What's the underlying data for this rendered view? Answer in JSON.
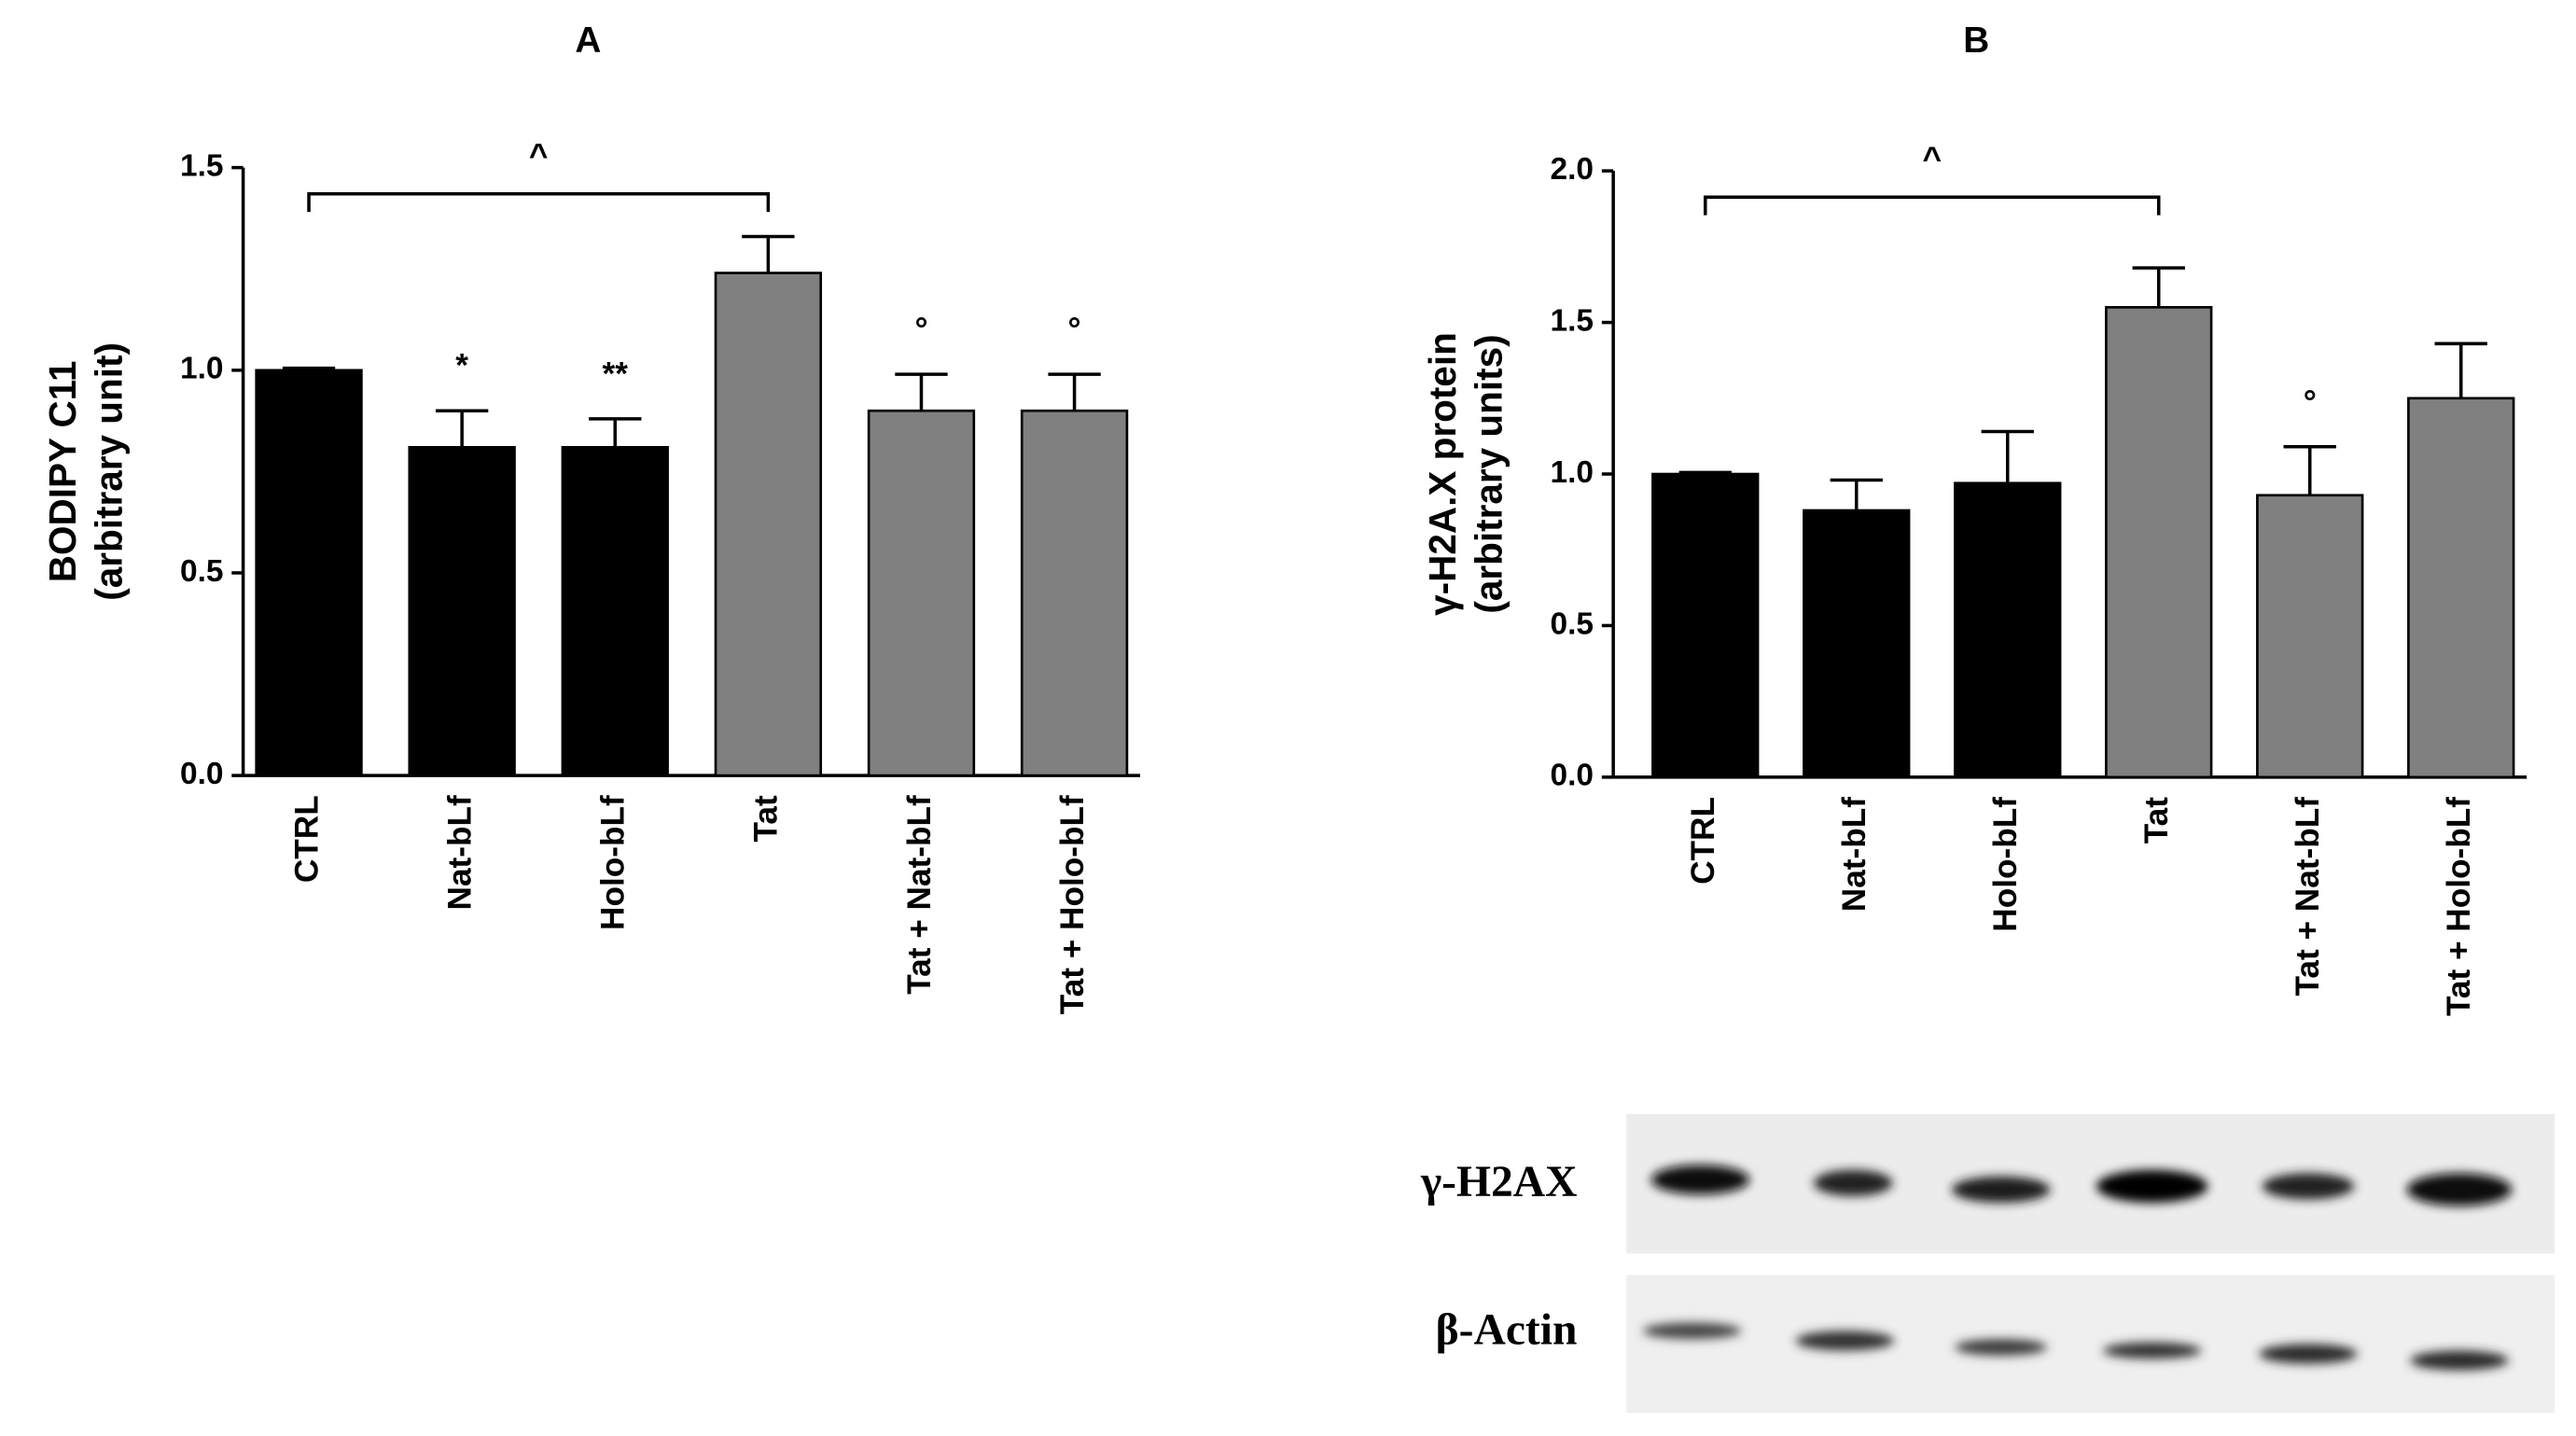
{
  "chart_data": [
    {
      "type": "bar",
      "title": "A",
      "ylabel": [
        "BODIPY C11",
        "(arbitrary unit)"
      ],
      "categories": [
        "CTRL",
        "Nat-bLf",
        "Holo-bLf",
        "Tat",
        "Tat + Nat-bLf",
        "Tat + Holo-bLf"
      ],
      "values": [
        1.0,
        0.81,
        0.81,
        1.24,
        0.9,
        0.9
      ],
      "errors": [
        0.005,
        0.09,
        0.07,
        0.09,
        0.09,
        0.09
      ],
      "colors": [
        "#000000",
        "#000000",
        "#000000",
        "#808080",
        "#808080",
        "#808080"
      ],
      "annotations": [
        null,
        "*",
        "**",
        null,
        "°",
        "°"
      ],
      "comparison": {
        "categories": [
          "CTRL",
          "Tat"
        ],
        "label": "^"
      },
      "ylim": [
        0,
        1.5
      ],
      "yticks": [
        {
          "value": 0,
          "label": "0.0"
        },
        {
          "value": 0.5,
          "label": "0.5"
        },
        {
          "value": 1,
          "label": "1.0"
        },
        {
          "value": 1.5,
          "label": "1.5"
        }
      ]
    },
    {
      "type": "bar",
      "title": "B",
      "ylabel": [
        "γ-H2A.X protein",
        "(arbitrary units)"
      ],
      "categories": [
        "CTRL",
        "Nat-bLf",
        "Holo-bLf",
        "Tat",
        "Tat + Nat-bLf",
        "Tat + Holo-bLf"
      ],
      "values": [
        1.0,
        0.88,
        0.97,
        1.55,
        0.93,
        1.25
      ],
      "errors": [
        0.005,
        0.1,
        0.17,
        0.13,
        0.16,
        0.18
      ],
      "colors": [
        "#000000",
        "#000000",
        "#000000",
        "#808080",
        "#808080",
        "#808080"
      ],
      "annotations": [
        null,
        null,
        null,
        null,
        "°",
        null
      ],
      "comparison": {
        "categories": [
          "CTRL",
          "Tat"
        ],
        "label": "^"
      },
      "ylim": [
        0,
        2.0
      ],
      "yticks": [
        {
          "value": 0,
          "label": "0.0"
        },
        {
          "value": 0.5,
          "label": "0.5"
        },
        {
          "value": 1,
          "label": "1.0"
        },
        {
          "value": 1.5,
          "label": "1.5"
        },
        {
          "value": 2,
          "label": "2.0"
        }
      ]
    }
  ],
  "blot": {
    "labels": [
      "γ-H2AX",
      "β-Actin"
    ]
  }
}
